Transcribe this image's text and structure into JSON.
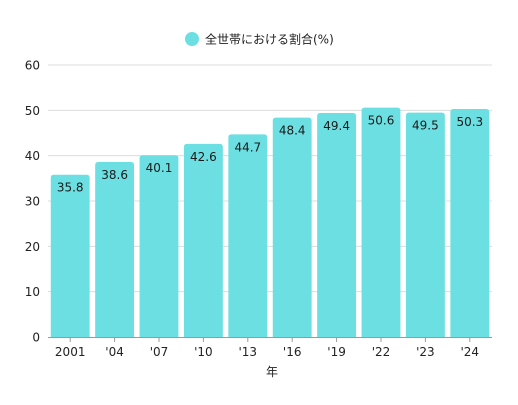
{
  "chart_data": {
    "type": "bar",
    "categories": [
      "2001",
      "'04",
      "'07",
      "'10",
      "'13",
      "'16",
      "'19",
      "'22",
      "'23",
      "'24"
    ],
    "series": [
      {
        "name": "全世帯における割合(%)",
        "values": [
          35.8,
          38.6,
          40.1,
          42.6,
          44.7,
          48.4,
          49.4,
          50.6,
          49.5,
          50.3
        ]
      }
    ],
    "data_labels": [
      "35.8",
      "38.6",
      "40.1",
      "42.6",
      "44.7",
      "48.4",
      "49.4",
      "50.6",
      "49.5",
      "50.3"
    ],
    "xlabel": "年",
    "ylabel": "",
    "ylim": [
      0,
      60
    ],
    "yticks": [
      "0",
      "10",
      "20",
      "30",
      "40",
      "50",
      "60"
    ],
    "grid": true,
    "legend_position": "top-center",
    "colors": {
      "bar": "#6cdfe2",
      "grid": "#dcdcdc",
      "axis": "#9a9a9a"
    }
  }
}
